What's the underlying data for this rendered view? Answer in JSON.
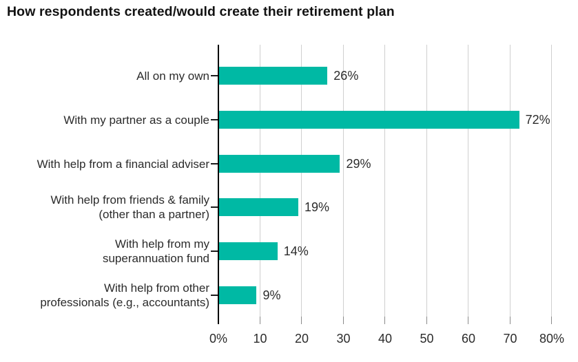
{
  "chart_data": {
    "type": "bar",
    "orientation": "horizontal",
    "title": "How respondents created/would create their retirement plan",
    "categories": [
      "All on my own",
      "With my partner as a couple",
      "With help from a financial adviser",
      "With help from friends & family (other than a partner)",
      "With help from my superannuation fund",
      "With help from other professionals (e.g., accountants)"
    ],
    "category_lines": [
      [
        "All on my own"
      ],
      [
        "With my partner as a couple"
      ],
      [
        "With help from a financial adviser"
      ],
      [
        "With help from friends & family",
        "(other than a partner)"
      ],
      [
        "With help from my",
        "superannuation fund"
      ],
      [
        "With help from other",
        "professionals (e.g., accountants)"
      ]
    ],
    "values": [
      26,
      72,
      29,
      19,
      14,
      9
    ],
    "data_labels": [
      "26%",
      "72%",
      "29%",
      "19%",
      "14%",
      "9%"
    ],
    "x_ticks": [
      {
        "value": 0,
        "label": "0%"
      },
      {
        "value": 10,
        "label": "10"
      },
      {
        "value": 20,
        "label": "20"
      },
      {
        "value": 30,
        "label": "30"
      },
      {
        "value": 40,
        "label": "40"
      },
      {
        "value": 50,
        "label": "50"
      },
      {
        "value": 60,
        "label": "60"
      },
      {
        "value": 70,
        "label": "70"
      },
      {
        "value": 80,
        "label": "80%"
      }
    ],
    "xlim": [
      0,
      80
    ],
    "xlabel": "",
    "ylabel": "",
    "grid": true,
    "legend": false,
    "colors": {
      "bar": "#00B9A4",
      "gridline": "#cfcfcf",
      "axis": "#000000",
      "text": "#2b2b2b",
      "title": "#121212"
    }
  }
}
